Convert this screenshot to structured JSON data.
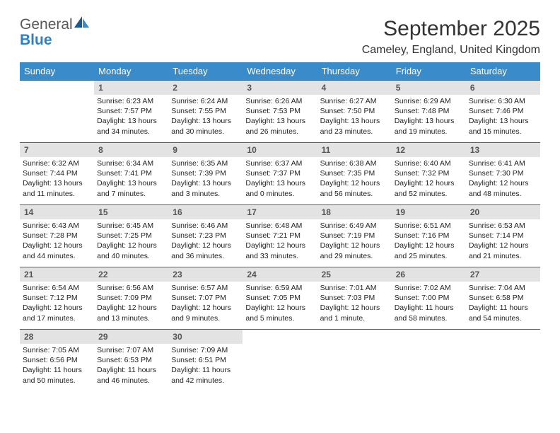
{
  "logo": {
    "general": "General",
    "blue": "Blue"
  },
  "title": "September 2025",
  "location": "Cameley, England, United Kingdom",
  "weekdays": [
    "Sunday",
    "Monday",
    "Tuesday",
    "Wednesday",
    "Thursday",
    "Friday",
    "Saturday"
  ],
  "colors": {
    "header_bg": "#3a8bc9",
    "header_text": "#ffffff",
    "daynum_bg": "#e3e3e3",
    "daynum_text": "#555555",
    "row_border": "#2d6fa3",
    "logo_gray": "#5a5a5a",
    "logo_blue": "#2d7fc1",
    "body_text": "#222222"
  },
  "weeks": [
    [
      null,
      {
        "n": "1",
        "sr": "Sunrise: 6:23 AM",
        "ss": "Sunset: 7:57 PM",
        "dl": "Daylight: 13 hours and 34 minutes."
      },
      {
        "n": "2",
        "sr": "Sunrise: 6:24 AM",
        "ss": "Sunset: 7:55 PM",
        "dl": "Daylight: 13 hours and 30 minutes."
      },
      {
        "n": "3",
        "sr": "Sunrise: 6:26 AM",
        "ss": "Sunset: 7:53 PM",
        "dl": "Daylight: 13 hours and 26 minutes."
      },
      {
        "n": "4",
        "sr": "Sunrise: 6:27 AM",
        "ss": "Sunset: 7:50 PM",
        "dl": "Daylight: 13 hours and 23 minutes."
      },
      {
        "n": "5",
        "sr": "Sunrise: 6:29 AM",
        "ss": "Sunset: 7:48 PM",
        "dl": "Daylight: 13 hours and 19 minutes."
      },
      {
        "n": "6",
        "sr": "Sunrise: 6:30 AM",
        "ss": "Sunset: 7:46 PM",
        "dl": "Daylight: 13 hours and 15 minutes."
      }
    ],
    [
      {
        "n": "7",
        "sr": "Sunrise: 6:32 AM",
        "ss": "Sunset: 7:44 PM",
        "dl": "Daylight: 13 hours and 11 minutes."
      },
      {
        "n": "8",
        "sr": "Sunrise: 6:34 AM",
        "ss": "Sunset: 7:41 PM",
        "dl": "Daylight: 13 hours and 7 minutes."
      },
      {
        "n": "9",
        "sr": "Sunrise: 6:35 AM",
        "ss": "Sunset: 7:39 PM",
        "dl": "Daylight: 13 hours and 3 minutes."
      },
      {
        "n": "10",
        "sr": "Sunrise: 6:37 AM",
        "ss": "Sunset: 7:37 PM",
        "dl": "Daylight: 13 hours and 0 minutes."
      },
      {
        "n": "11",
        "sr": "Sunrise: 6:38 AM",
        "ss": "Sunset: 7:35 PM",
        "dl": "Daylight: 12 hours and 56 minutes."
      },
      {
        "n": "12",
        "sr": "Sunrise: 6:40 AM",
        "ss": "Sunset: 7:32 PM",
        "dl": "Daylight: 12 hours and 52 minutes."
      },
      {
        "n": "13",
        "sr": "Sunrise: 6:41 AM",
        "ss": "Sunset: 7:30 PM",
        "dl": "Daylight: 12 hours and 48 minutes."
      }
    ],
    [
      {
        "n": "14",
        "sr": "Sunrise: 6:43 AM",
        "ss": "Sunset: 7:28 PM",
        "dl": "Daylight: 12 hours and 44 minutes."
      },
      {
        "n": "15",
        "sr": "Sunrise: 6:45 AM",
        "ss": "Sunset: 7:25 PM",
        "dl": "Daylight: 12 hours and 40 minutes."
      },
      {
        "n": "16",
        "sr": "Sunrise: 6:46 AM",
        "ss": "Sunset: 7:23 PM",
        "dl": "Daylight: 12 hours and 36 minutes."
      },
      {
        "n": "17",
        "sr": "Sunrise: 6:48 AM",
        "ss": "Sunset: 7:21 PM",
        "dl": "Daylight: 12 hours and 33 minutes."
      },
      {
        "n": "18",
        "sr": "Sunrise: 6:49 AM",
        "ss": "Sunset: 7:19 PM",
        "dl": "Daylight: 12 hours and 29 minutes."
      },
      {
        "n": "19",
        "sr": "Sunrise: 6:51 AM",
        "ss": "Sunset: 7:16 PM",
        "dl": "Daylight: 12 hours and 25 minutes."
      },
      {
        "n": "20",
        "sr": "Sunrise: 6:53 AM",
        "ss": "Sunset: 7:14 PM",
        "dl": "Daylight: 12 hours and 21 minutes."
      }
    ],
    [
      {
        "n": "21",
        "sr": "Sunrise: 6:54 AM",
        "ss": "Sunset: 7:12 PM",
        "dl": "Daylight: 12 hours and 17 minutes."
      },
      {
        "n": "22",
        "sr": "Sunrise: 6:56 AM",
        "ss": "Sunset: 7:09 PM",
        "dl": "Daylight: 12 hours and 13 minutes."
      },
      {
        "n": "23",
        "sr": "Sunrise: 6:57 AM",
        "ss": "Sunset: 7:07 PM",
        "dl": "Daylight: 12 hours and 9 minutes."
      },
      {
        "n": "24",
        "sr": "Sunrise: 6:59 AM",
        "ss": "Sunset: 7:05 PM",
        "dl": "Daylight: 12 hours and 5 minutes."
      },
      {
        "n": "25",
        "sr": "Sunrise: 7:01 AM",
        "ss": "Sunset: 7:03 PM",
        "dl": "Daylight: 12 hours and 1 minute."
      },
      {
        "n": "26",
        "sr": "Sunrise: 7:02 AM",
        "ss": "Sunset: 7:00 PM",
        "dl": "Daylight: 11 hours and 58 minutes."
      },
      {
        "n": "27",
        "sr": "Sunrise: 7:04 AM",
        "ss": "Sunset: 6:58 PM",
        "dl": "Daylight: 11 hours and 54 minutes."
      }
    ],
    [
      {
        "n": "28",
        "sr": "Sunrise: 7:05 AM",
        "ss": "Sunset: 6:56 PM",
        "dl": "Daylight: 11 hours and 50 minutes."
      },
      {
        "n": "29",
        "sr": "Sunrise: 7:07 AM",
        "ss": "Sunset: 6:53 PM",
        "dl": "Daylight: 11 hours and 46 minutes."
      },
      {
        "n": "30",
        "sr": "Sunrise: 7:09 AM",
        "ss": "Sunset: 6:51 PM",
        "dl": "Daylight: 11 hours and 42 minutes."
      },
      null,
      null,
      null,
      null
    ]
  ]
}
